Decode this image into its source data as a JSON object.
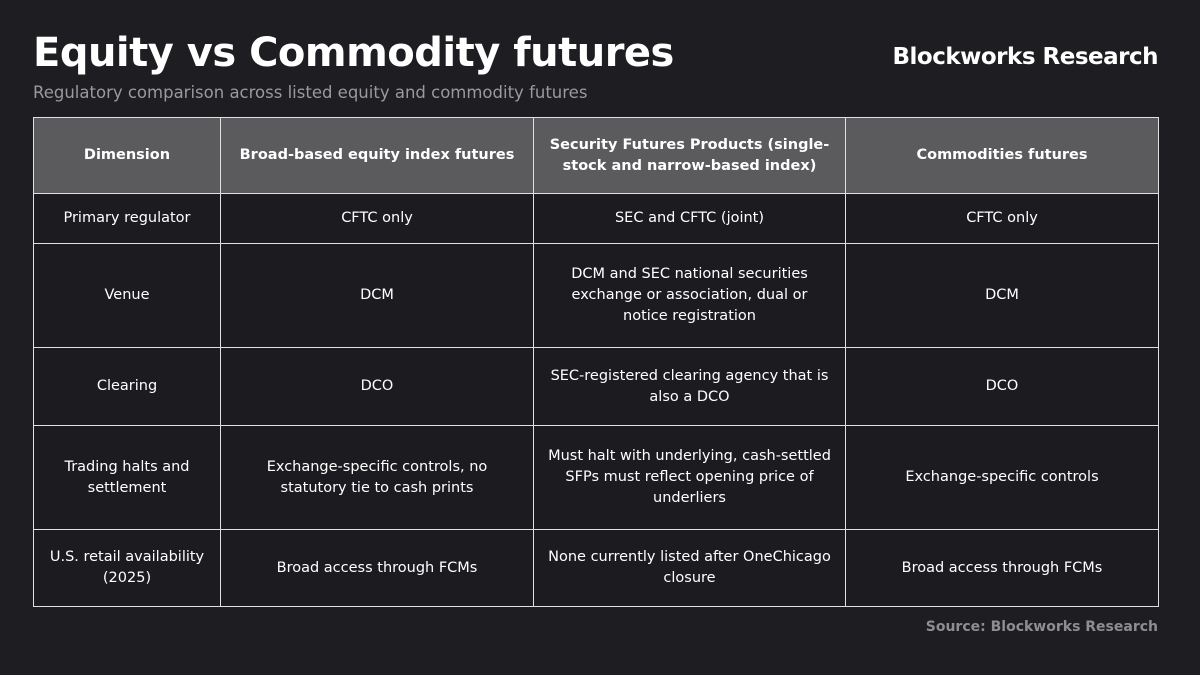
{
  "header": {
    "title": "Equity vs Commodity futures",
    "subtitle": "Regulatory comparison across listed equity and commodity futures",
    "brand": "Blockworks Research"
  },
  "table": {
    "columns": [
      "Dimension",
      "Broad-based equity index futures",
      "Security Futures Products (single-stock and narrow-based index)",
      "Commodities futures"
    ],
    "rows": [
      [
        "Primary regulator",
        "CFTC only",
        "SEC and CFTC (joint)",
        "CFTC only"
      ],
      [
        "Venue",
        "DCM",
        "DCM and SEC national securities exchange or association, dual or notice registration",
        "DCM"
      ],
      [
        "Clearing",
        "DCO",
        "SEC-registered clearing agency that is also a DCO",
        "DCO"
      ],
      [
        "Trading halts and settlement",
        "Exchange-specific controls, no statutory tie to cash prints",
        "Must halt with underlying, cash-settled SFPs must reflect opening price of underliers",
        "Exchange-specific controls"
      ],
      [
        "U.S. retail availability (2025)",
        "Broad access through FCMs",
        "None currently listed after OneChicago closure",
        "Broad access through FCMs"
      ]
    ]
  },
  "source": "Source: Blockworks Research"
}
